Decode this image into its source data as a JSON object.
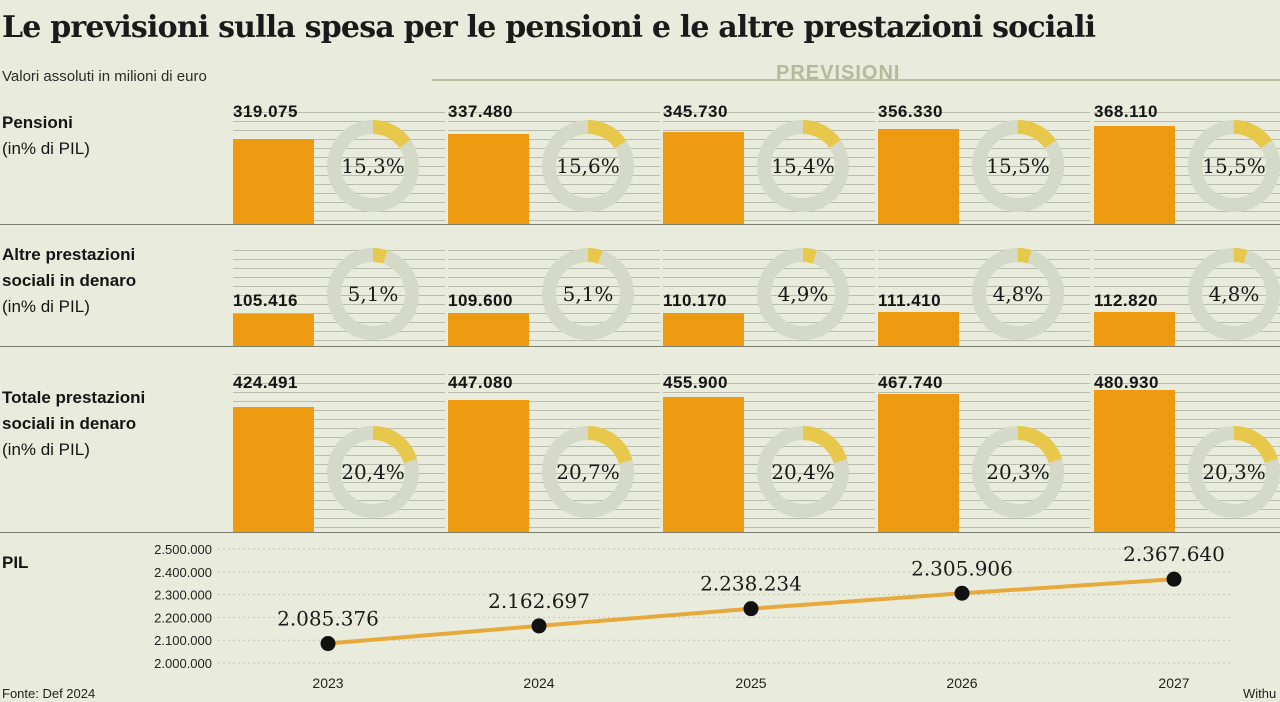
{
  "title": "Le previsioni sulla spesa per le pensioni e le altre prestazioni sociali",
  "subtitle": "Valori assoluti in milioni di euro",
  "forecast_label": "PREVISIONI",
  "rows": [
    {
      "name": "Pensioni",
      "note": "(in% di PIL)"
    },
    {
      "name_lines": [
        "Altre prestazioni",
        "sociali in denaro"
      ],
      "note": "(in% di PIL)"
    },
    {
      "name_lines": [
        "Totale prestazioni",
        "sociali in denaro"
      ],
      "note": "(in% di PIL)"
    }
  ],
  "pil_label": "PIL",
  "source": "Fonte: Def 2024",
  "watermark": "Withu",
  "colors": {
    "bar": "#ef9b12",
    "ring": "#d5d9c7",
    "ring_fill": "#e8c84a",
    "line": "#e8a93c",
    "dot": "#111111"
  },
  "panels": [
    {
      "year": "2023",
      "pensioni": {
        "value": "319.075",
        "pct": "15,3%"
      },
      "altre": {
        "value": "105.416",
        "pct": "5,1%"
      },
      "totale": {
        "value": "424.491",
        "pct": "20,4%"
      },
      "pil": "2.085.376"
    },
    {
      "year": "2024",
      "pensioni": {
        "value": "337.480",
        "pct": "15,6%"
      },
      "altre": {
        "value": "109.600",
        "pct": "5,1%"
      },
      "totale": {
        "value": "447.080",
        "pct": "20,7%"
      },
      "pil": "2.162.697"
    },
    {
      "year": "2025",
      "pensioni": {
        "value": "345.730",
        "pct": "15,4%"
      },
      "altre": {
        "value": "110.170",
        "pct": "4,9%"
      },
      "totale": {
        "value": "455.900",
        "pct": "20,4%"
      },
      "pil": "2.238.234"
    },
    {
      "year": "2026",
      "pensioni": {
        "value": "356.330",
        "pct": "15,5%"
      },
      "altre": {
        "value": "111.410",
        "pct": "4,8%"
      },
      "totale": {
        "value": "467.740",
        "pct": "20,3%"
      },
      "pil": "2.305.906"
    },
    {
      "year": "2027",
      "pensioni": {
        "value": "368.110",
        "pct": "15,5%"
      },
      "altre": {
        "value": "112.820",
        "pct": "4,8%"
      },
      "totale": {
        "value": "480.930",
        "pct": "20,3%"
      },
      "pil": "2.367.640"
    }
  ],
  "chart_data": [
    {
      "type": "bar",
      "title": "Pensioni",
      "categories": [
        "2023",
        "2024",
        "2025",
        "2026",
        "2027"
      ],
      "values": [
        319075,
        337480,
        345730,
        356330,
        368110
      ],
      "pct_of_pil": [
        15.3,
        15.6,
        15.4,
        15.5,
        15.5
      ]
    },
    {
      "type": "bar",
      "title": "Altre prestazioni sociali in denaro",
      "categories": [
        "2023",
        "2024",
        "2025",
        "2026",
        "2027"
      ],
      "values": [
        105416,
        109600,
        110170,
        111410,
        112820
      ],
      "pct_of_pil": [
        5.1,
        5.1,
        4.9,
        4.8,
        4.8
      ]
    },
    {
      "type": "bar",
      "title": "Totale prestazioni sociali in denaro",
      "categories": [
        "2023",
        "2024",
        "2025",
        "2026",
        "2027"
      ],
      "values": [
        424491,
        447080,
        455900,
        467740,
        480930
      ],
      "pct_of_pil": [
        20.4,
        20.7,
        20.4,
        20.3,
        20.3
      ]
    },
    {
      "type": "line",
      "title": "PIL",
      "x": [
        "2023",
        "2024",
        "2025",
        "2026",
        "2027"
      ],
      "values": [
        2085376,
        2162697,
        2238234,
        2305906,
        2367640
      ],
      "ylim": [
        2000000,
        2500000
      ],
      "yticks": [
        "2.000.000",
        "2.100.000",
        "2.200.000",
        "2.300.000",
        "2.400.000",
        "2.500.000"
      ],
      "grid": true
    }
  ]
}
